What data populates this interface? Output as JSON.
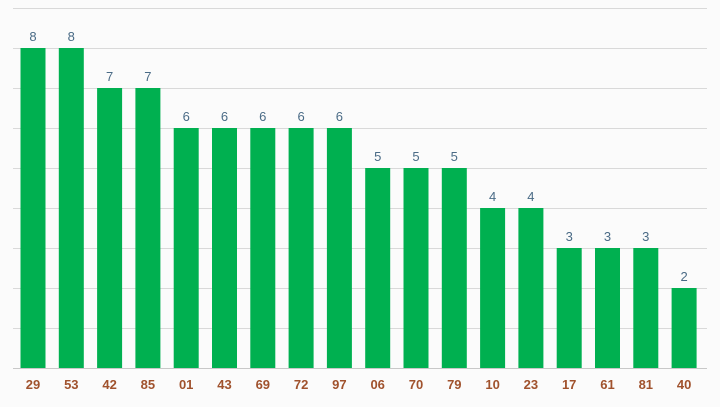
{
  "chart_data": {
    "type": "bar",
    "categories": [
      "29",
      "53",
      "42",
      "85",
      "01",
      "43",
      "69",
      "72",
      "97",
      "06",
      "70",
      "79",
      "10",
      "23",
      "17",
      "61",
      "81",
      "40"
    ],
    "values": [
      8,
      8,
      7,
      7,
      6,
      6,
      6,
      6,
      6,
      5,
      5,
      5,
      4,
      4,
      3,
      3,
      3,
      2
    ],
    "title": "",
    "xlabel": "",
    "ylabel": "",
    "ylim": [
      0,
      9
    ],
    "grid": true,
    "show_data_labels": true,
    "colors": {
      "bar": "#00b050",
      "value_label": "#4a6b86",
      "tick_label": "#a0522d",
      "grid": "#d9d9d9"
    }
  }
}
